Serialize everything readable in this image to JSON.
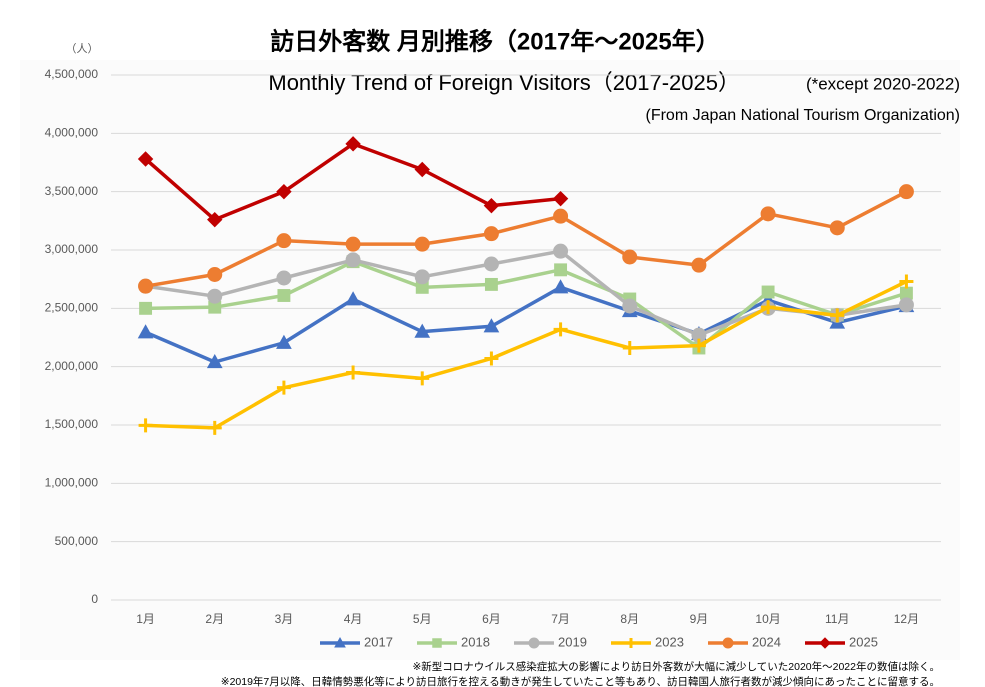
{
  "chart_data": {
    "type": "line",
    "title": "訪日外客数 月別推移（2017年～2025年）",
    "subtitle": "Monthly Trend of Foreign Visitors（2017-2025）",
    "subtitle_note": "(*except 2020-2022)",
    "source": "(From Japan National Tourism Organization)",
    "y_axis_label": "（人）",
    "footnotes": [
      "※新型コロナウイルス感染症拡大の影響により訪日外客数が大幅に減少していた2020年～2022年の数値は除く。",
      "※2019年7月以降、日韓情勢悪化等により訪日旅行を控える動きが発生していたこと等もあり、訪日韓国人旅行者数が減少傾向にあったことに留意する。"
    ],
    "categories": [
      "1月",
      "2月",
      "3月",
      "4月",
      "5月",
      "6月",
      "7月",
      "8月",
      "9月",
      "10月",
      "11月",
      "12月"
    ],
    "ylim": [
      0,
      4500000
    ],
    "yticks": [
      0,
      {
        "value": 500000,
        "label": "500,000"
      },
      {
        "value": 1000000,
        "label": "1,000,000"
      },
      {
        "value": 1500000,
        "label": "1,500,000"
      },
      {
        "value": 2000000,
        "label": "2,000,000"
      },
      {
        "value": 2500000,
        "label": "2,500,000"
      },
      {
        "value": 3000000,
        "label": "3,000,000"
      },
      {
        "value": 3500000,
        "label": "3,500,000"
      },
      {
        "value": 4000000,
        "label": "4,000,000"
      },
      {
        "value": 4500000,
        "label": "4,500,000"
      }
    ],
    "grid": true,
    "legend": "bottom",
    "series": [
      {
        "name": "2017",
        "color": "#4472c4",
        "marker": "triangle",
        "values": [
          2295000,
          2040000,
          2205000,
          2578000,
          2300000,
          2346000,
          2680000,
          2477000,
          2280000,
          2570000,
          2378000,
          2520000
        ]
      },
      {
        "name": "2018",
        "color": "#a9d18e",
        "marker": "square",
        "values": [
          2500000,
          2510000,
          2610000,
          2900000,
          2680000,
          2705000,
          2830000,
          2580000,
          2160000,
          2640000,
          2443000,
          2630000
        ]
      },
      {
        "name": "2019",
        "color": "#b4b4b4",
        "marker": "circle",
        "values": [
          2690000,
          2604000,
          2760000,
          2915000,
          2770000,
          2880000,
          2990000,
          2520000,
          2270000,
          2500000,
          2440000,
          2530000
        ]
      },
      {
        "name": "2023",
        "color": "#ffc000",
        "marker": "plus",
        "values": [
          1497000,
          1475000,
          1820000,
          1950000,
          1900000,
          2070000,
          2320000,
          2160000,
          2180000,
          2510000,
          2440000,
          2730000
        ]
      },
      {
        "name": "2024",
        "color": "#ed7d31",
        "marker": "circle",
        "values": [
          2690000,
          2790000,
          3080000,
          3050000,
          3050000,
          3140000,
          3290000,
          2940000,
          2870000,
          3310000,
          3190000,
          3500000
        ]
      },
      {
        "name": "2025",
        "color": "#c00000",
        "marker": "diamond",
        "values": [
          3780000,
          3260000,
          3500000,
          3910000,
          3690000,
          3380000,
          3440000,
          null,
          null,
          null,
          null,
          null
        ]
      }
    ]
  }
}
